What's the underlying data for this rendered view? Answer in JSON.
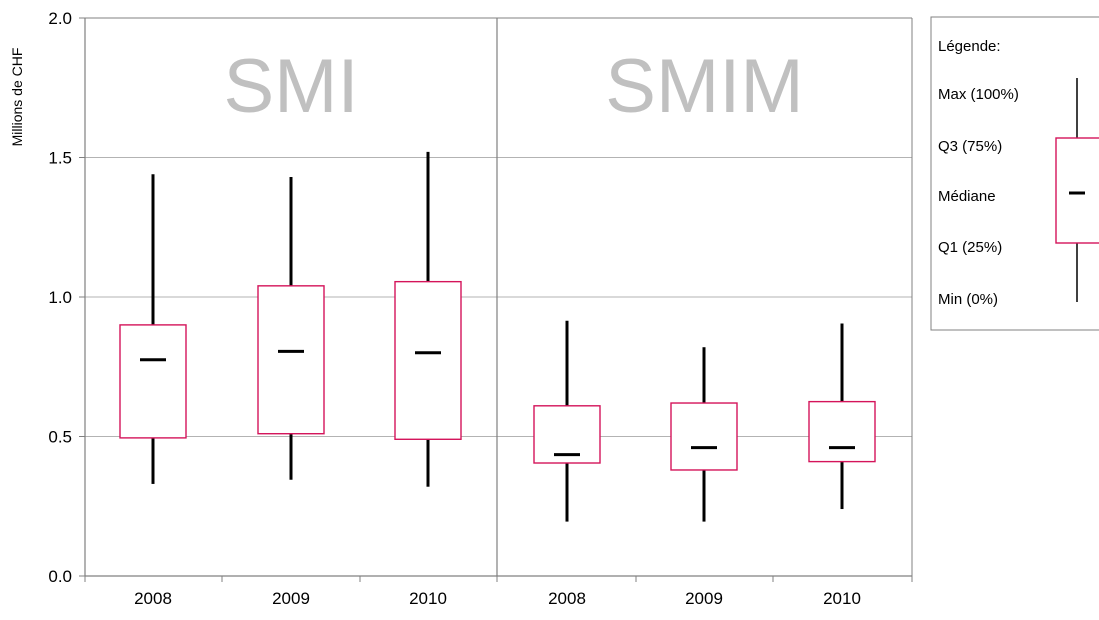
{
  "chart_data": {
    "type": "boxplot",
    "ylabel": "Millions de CHF",
    "ylim": [
      0.0,
      2.0
    ],
    "yticks": [
      "0.0",
      "0.5",
      "1.0",
      "1.5",
      "2.0"
    ],
    "ytick_values": [
      0.0,
      0.5,
      1.0,
      1.5,
      2.0
    ],
    "grid": true,
    "colors": {
      "box_border": "#d4145a",
      "whisker": "#000000",
      "median": "#000000",
      "grid": "#b3b3b3",
      "panel_label": "#c0c0c0",
      "axis": "#808080"
    },
    "panels": [
      {
        "label": "SMI",
        "categories": [
          "2008",
          "2009",
          "2010"
        ],
        "boxes": [
          {
            "min": 0.33,
            "q1": 0.495,
            "median": 0.775,
            "q3": 0.9,
            "max": 1.44
          },
          {
            "min": 0.345,
            "q1": 0.51,
            "median": 0.805,
            "q3": 1.04,
            "max": 1.43
          },
          {
            "min": 0.32,
            "q1": 0.49,
            "median": 0.8,
            "q3": 1.055,
            "max": 1.52
          }
        ]
      },
      {
        "label": "SMIM",
        "categories": [
          "2008",
          "2009",
          "2010"
        ],
        "boxes": [
          {
            "min": 0.195,
            "q1": 0.405,
            "median": 0.435,
            "q3": 0.61,
            "max": 0.915
          },
          {
            "min": 0.195,
            "q1": 0.38,
            "median": 0.46,
            "q3": 0.62,
            "max": 0.82
          },
          {
            "min": 0.24,
            "q1": 0.41,
            "median": 0.46,
            "q3": 0.625,
            "max": 0.905
          }
        ]
      }
    ],
    "legend": {
      "title": "Légende:",
      "placement": "right",
      "items": [
        "Max  (100%)",
        "Q3 (75%)",
        "Médiane",
        "Q1  (25%)",
        "Min (0%)"
      ]
    }
  }
}
